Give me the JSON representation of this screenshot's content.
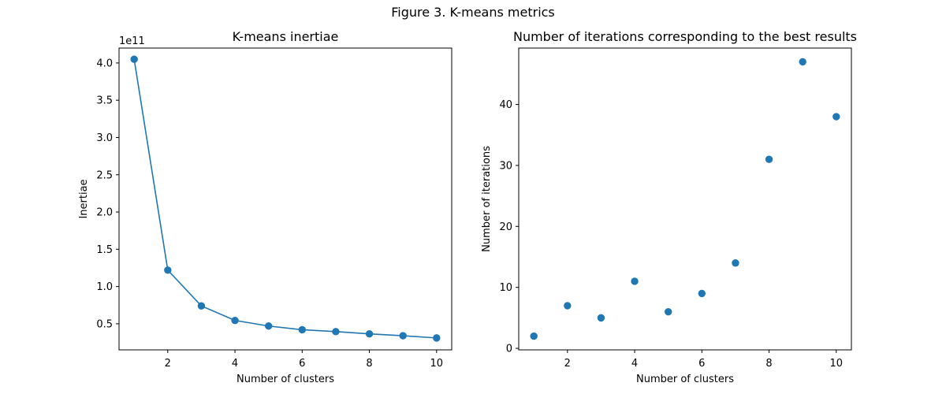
{
  "figure": {
    "title": "Figure 3. K-means metrics"
  },
  "chart_data": [
    {
      "type": "line",
      "title": "K-means inertiae",
      "xlabel": "Number of clusters",
      "ylabel": "Inertiae",
      "y_scale_label": "1e11",
      "x": [
        1,
        2,
        3,
        4,
        5,
        6,
        7,
        8,
        9,
        10
      ],
      "series": [
        {
          "values": [
            4.05,
            1.22,
            0.74,
            0.545,
            0.47,
            0.42,
            0.395,
            0.365,
            0.34,
            0.31
          ],
          "color": "#1f77b4"
        }
      ],
      "markers": true,
      "xlim": [
        0.55,
        10.45
      ],
      "ylim": [
        0.15,
        4.2
      ],
      "xticks": [
        2,
        4,
        6,
        8,
        10
      ],
      "yticks": [
        0.5,
        1.0,
        1.5,
        2.0,
        2.5,
        3.0,
        3.5,
        4.0
      ],
      "ytick_labels": [
        "0.5",
        "1.0",
        "1.5",
        "2.0",
        "2.5",
        "3.0",
        "3.5",
        "4.0"
      ],
      "grid": false
    },
    {
      "type": "scatter",
      "title": "Number of iterations corresponding to the best results",
      "xlabel": "Number of clusters",
      "ylabel": "Number of iterations",
      "x": [
        1,
        2,
        3,
        4,
        5,
        6,
        7,
        8,
        9,
        10
      ],
      "series": [
        {
          "values": [
            2,
            7,
            5,
            11,
            6,
            9,
            14,
            31,
            47,
            38
          ],
          "color": "#1f77b4"
        }
      ],
      "xlim": [
        0.55,
        10.45
      ],
      "ylim": [
        -0.25,
        49.25
      ],
      "xticks": [
        2,
        4,
        6,
        8,
        10
      ],
      "yticks": [
        0,
        10,
        20,
        30,
        40
      ],
      "ytick_labels": [
        "0",
        "10",
        "20",
        "30",
        "40"
      ],
      "grid": false
    }
  ]
}
